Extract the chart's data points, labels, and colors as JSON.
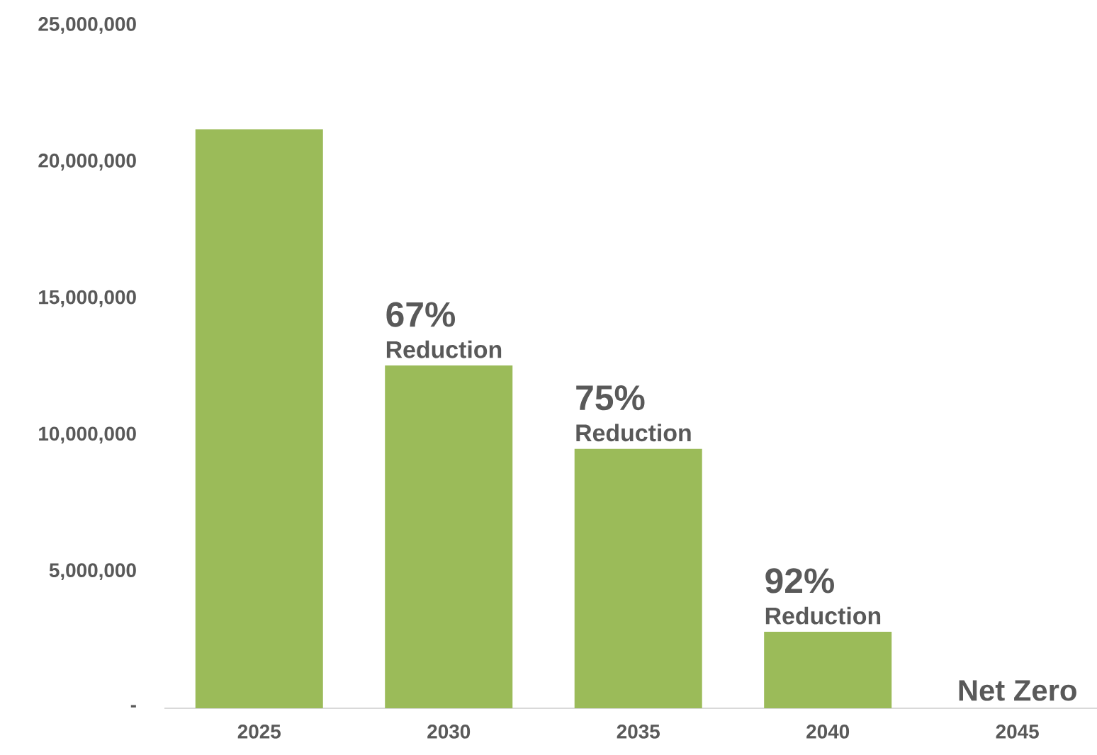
{
  "chart_data": {
    "type": "bar",
    "categories": [
      "2025",
      "2030",
      "2035",
      "2040",
      "2045"
    ],
    "values": [
      21200000,
      12550000,
      9500000,
      2800000,
      0
    ],
    "color": "#9bbb59",
    "ylim": [
      0,
      25000000
    ],
    "yticks": [
      {
        "value": 0,
        "label": "-"
      },
      {
        "value": 5000000,
        "label": "5,000,000"
      },
      {
        "value": 10000000,
        "label": "10,000,000"
      },
      {
        "value": 15000000,
        "label": "15,000,000"
      },
      {
        "value": 20000000,
        "label": "20,000,000"
      },
      {
        "value": 25000000,
        "label": "25,000,000"
      }
    ],
    "grid": false,
    "annotations": [
      {
        "text": "67%",
        "x": "2030",
        "y": 12550000
      },
      {
        "text": "Reduction",
        "x": "2030",
        "y": 12550000
      },
      {
        "text": "75%",
        "x": "2035",
        "y": 9500000
      },
      {
        "text": "Reduction",
        "x": "2035",
        "y": 9500000
      },
      {
        "text": "92%",
        "x": "2040",
        "y": 2800000
      },
      {
        "text": "Reduction",
        "x": "2040",
        "y": 2800000
      },
      {
        "text": "Net Zero",
        "x": "2045",
        "y": 0
      }
    ]
  }
}
